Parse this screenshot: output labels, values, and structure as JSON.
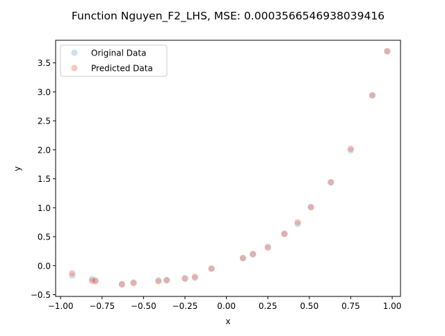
{
  "chart_data": {
    "type": "scatter",
    "title": "Function Nguyen_F2_LHS, MSE: 0.0003566546938039416",
    "xlabel": "x",
    "ylabel": "y",
    "xlim": [
      -1.03,
      1.05
    ],
    "ylim": [
      -0.53,
      3.89
    ],
    "xticks": [
      -1.0,
      -0.75,
      -0.5,
      -0.25,
      0.0,
      0.25,
      0.5,
      0.75,
      1.0
    ],
    "xtick_labels": [
      "−1.00",
      "−0.75",
      "−0.50",
      "−0.25",
      "0.00",
      "0.25",
      "0.50",
      "0.75",
      "1.00"
    ],
    "yticks": [
      -0.5,
      0.0,
      0.5,
      1.0,
      1.5,
      2.0,
      2.5,
      3.0,
      3.5
    ],
    "ytick_labels": [
      "−0.5",
      "0.0",
      "0.5",
      "1.0",
      "1.5",
      "2.0",
      "2.5",
      "3.0",
      "3.5"
    ],
    "grid": false,
    "legend_position": "top-left",
    "series": [
      {
        "name": "Original Data",
        "color": "#1f77b4",
        "alpha": 0.22,
        "points": [
          [
            -0.93,
            -0.17
          ],
          [
            -0.81,
            -0.23
          ],
          [
            -0.79,
            -0.25
          ],
          [
            -0.63,
            -0.32
          ],
          [
            -0.56,
            -0.29
          ],
          [
            -0.41,
            -0.25
          ],
          [
            -0.36,
            -0.25
          ],
          [
            -0.25,
            -0.22
          ],
          [
            -0.19,
            -0.21
          ],
          [
            -0.09,
            -0.05
          ],
          [
            0.1,
            0.13
          ],
          [
            0.16,
            0.2
          ],
          [
            0.25,
            0.33
          ],
          [
            0.35,
            0.55
          ],
          [
            0.43,
            0.72
          ],
          [
            0.51,
            1.01
          ],
          [
            0.63,
            1.44
          ],
          [
            0.75,
            1.99
          ],
          [
            0.88,
            2.94
          ],
          [
            0.97,
            3.7
          ]
        ]
      },
      {
        "name": "Predicted Data",
        "color": "#ff4d2e",
        "alpha": 0.32,
        "points": [
          [
            -0.93,
            -0.13
          ],
          [
            -0.81,
            -0.26
          ],
          [
            -0.79,
            -0.27
          ],
          [
            -0.63,
            -0.32
          ],
          [
            -0.56,
            -0.3
          ],
          [
            -0.41,
            -0.27
          ],
          [
            -0.36,
            -0.25
          ],
          [
            -0.25,
            -0.22
          ],
          [
            -0.19,
            -0.19
          ],
          [
            -0.09,
            -0.05
          ],
          [
            0.1,
            0.13
          ],
          [
            0.16,
            0.2
          ],
          [
            0.25,
            0.31
          ],
          [
            0.35,
            0.55
          ],
          [
            0.43,
            0.75
          ],
          [
            0.51,
            1.01
          ],
          [
            0.63,
            1.44
          ],
          [
            0.75,
            2.02
          ],
          [
            0.88,
            2.94
          ],
          [
            0.97,
            3.7
          ]
        ]
      }
    ]
  }
}
